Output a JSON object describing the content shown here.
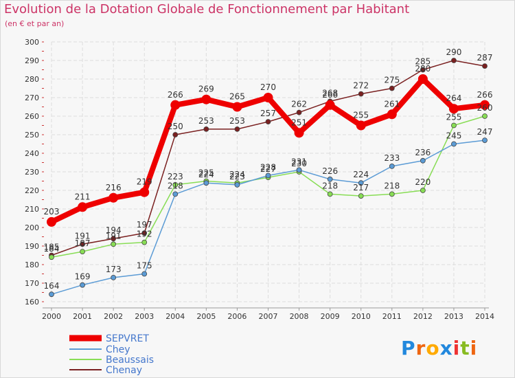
{
  "chart_data": {
    "type": "line",
    "title": "Evolution de la Dotation Globale de Fonctionnement par Habitant",
    "subtitle": "(en € et par an)",
    "categories": [
      "2000",
      "2001",
      "2002",
      "2003",
      "2004",
      "2005",
      "2006",
      "2007",
      "2008",
      "2009",
      "2010",
      "2011",
      "2012",
      "2013",
      "2014"
    ],
    "ylim": [
      160,
      300
    ],
    "yticks": [
      160,
      170,
      180,
      190,
      200,
      210,
      220,
      230,
      240,
      250,
      260,
      270,
      280,
      290,
      300
    ],
    "grid": true,
    "legend_position": "bottom-left",
    "series": [
      {
        "name": "SEPVRET",
        "color": "#ee0000",
        "values": [
          203,
          211,
          216,
          219,
          266,
          269,
          265,
          270,
          251,
          266,
          255,
          261,
          280,
          264,
          266
        ]
      },
      {
        "name": "Chey",
        "color": "#5b9bd5",
        "values": [
          164,
          169,
          173,
          175,
          218,
          224,
          223,
          228,
          231,
          226,
          224,
          233,
          236,
          245,
          247
        ]
      },
      {
        "name": "Beaussais",
        "color": "#88dd55",
        "values": [
          184,
          187,
          191,
          192,
          223,
          225,
          224,
          227,
          230,
          218,
          217,
          218,
          220,
          255,
          260
        ]
      },
      {
        "name": "Chenay",
        "color": "#7a2020",
        "values": [
          185,
          191,
          194,
          197,
          250,
          253,
          253,
          257,
          262,
          268,
          272,
          275,
          285,
          290,
          287
        ]
      }
    ],
    "logo": {
      "letters": [
        "P",
        "r",
        "o",
        "x",
        "i",
        "t",
        "i"
      ],
      "colors": [
        "#2288dd",
        "#ee6611",
        "#ffaa00",
        "#2288dd",
        "#ee3333",
        "#88bb22",
        "#ee6611"
      ]
    }
  }
}
